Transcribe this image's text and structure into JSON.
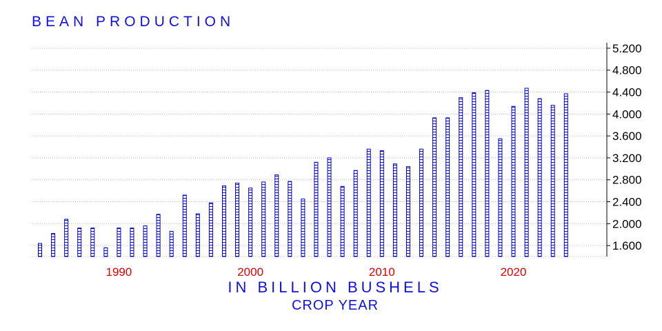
{
  "colors": {
    "bar_stroke": "#0000cc",
    "title_text": "#1010e0",
    "year_labels": "#e00000",
    "grid": "#bbbbbb",
    "axis": "#000000"
  },
  "chart_data": {
    "type": "bar",
    "title": "BEAN PRODUCTION",
    "subtitle": "IN BILLION BUSHELS",
    "xlabel": "CROP YEAR",
    "ylabel": "",
    "x": [
      1984,
      1985,
      1986,
      1987,
      1988,
      1989,
      1990,
      1991,
      1992,
      1993,
      1994,
      1995,
      1996,
      1997,
      1998,
      1999,
      2000,
      2001,
      2002,
      2003,
      2004,
      2005,
      2006,
      2007,
      2008,
      2009,
      2010,
      2011,
      2012,
      2013,
      2014,
      2015,
      2016,
      2017,
      2018,
      2019,
      2020,
      2021,
      2022,
      2023,
      2024
    ],
    "values": [
      1.64,
      1.82,
      2.08,
      1.92,
      1.92,
      1.56,
      1.92,
      1.92,
      1.96,
      2.17,
      1.86,
      2.52,
      2.18,
      2.38,
      2.69,
      2.74,
      2.65,
      2.76,
      2.89,
      2.77,
      2.45,
      3.12,
      3.2,
      2.68,
      2.97,
      3.36,
      3.33,
      3.09,
      3.04,
      3.36,
      3.93,
      3.93,
      4.3,
      4.39,
      4.43,
      3.55,
      4.14,
      4.47,
      4.28,
      4.16,
      4.37
    ],
    "ylim": [
      1.4,
      5.3
    ],
    "xlim": [
      1983,
      2027
    ],
    "y_ticks": [
      "1.600",
      "2.000",
      "2.400",
      "2.800",
      "3.200",
      "3.600",
      "4.000",
      "4.400",
      "4.800",
      "5.200"
    ],
    "x_ticks": [
      "1990",
      "2000",
      "2010",
      "2020"
    ],
    "grid": true,
    "y_axis_side": "right"
  }
}
